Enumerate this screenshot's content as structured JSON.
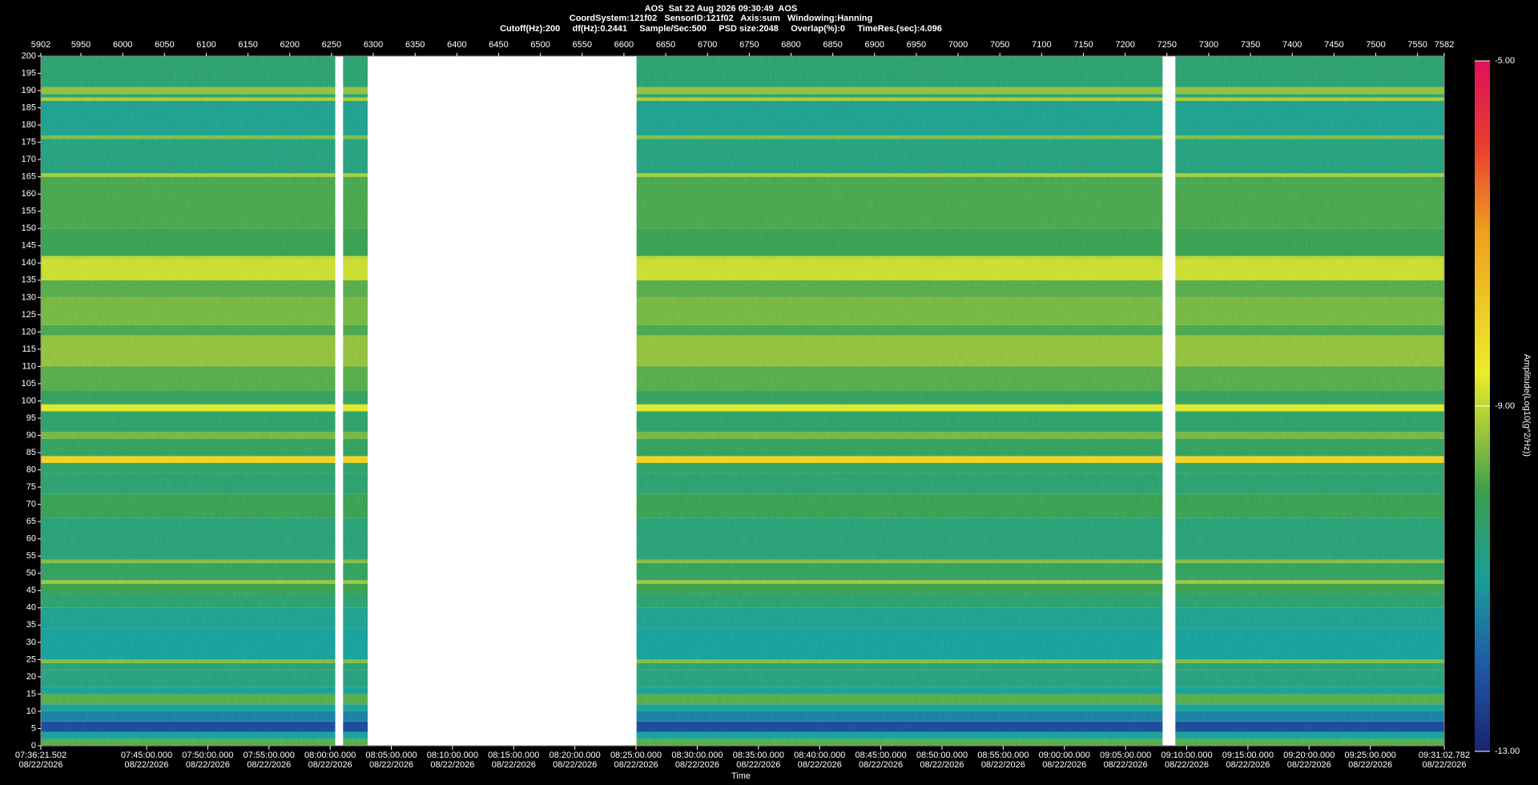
{
  "chart_data": {
    "type": "spectrogram",
    "title": "AOS  Sat 22 Aug 2026 09:30:49  AOS",
    "subtitle": [
      "CoordSystem:121f02   SensorID:121f02   Axis:sum   Windowing:Hanning",
      "Cutoff(Hz):200     df(Hz):0.2441     Sample/Sec:500     PSD size:2048     Overlap(%):0     TimeRes.(sec):4.096"
    ],
    "x_label": "Time",
    "colorbar_label": "Amplitude(Log10(g^2/Hz))",
    "xlim": [
      5902,
      7582
    ],
    "x2ticks": [
      5902,
      5950,
      6000,
      6050,
      6100,
      6150,
      6200,
      6250,
      6300,
      6350,
      6400,
      6450,
      6500,
      6550,
      6600,
      6650,
      6700,
      6750,
      6800,
      6850,
      6900,
      6950,
      7000,
      7050,
      7100,
      7150,
      7200,
      7250,
      7300,
      7350,
      7400,
      7450,
      7500,
      7550,
      7582
    ],
    "xticks": [
      {
        "value": 5902,
        "label": "07:36:21.502",
        "date": "08/22/2026"
      },
      {
        "value": 6028.59,
        "label": "07:45:00.000",
        "date": "08/22/2026"
      },
      {
        "value": 6101.83,
        "label": "07:50:00.000",
        "date": "08/22/2026"
      },
      {
        "value": 6175.07,
        "label": "07:55:00.000",
        "date": "08/22/2026"
      },
      {
        "value": 6248.32,
        "label": "08:00:00.000",
        "date": "08/22/2026"
      },
      {
        "value": 6321.56,
        "label": "08:05:00.000",
        "date": "08/22/2026"
      },
      {
        "value": 6394.8,
        "label": "08:10:00.000",
        "date": "08/22/2026"
      },
      {
        "value": 6468.04,
        "label": "08:15:00.000",
        "date": "08/22/2026"
      },
      {
        "value": 6541.28,
        "label": "08:20:00.000",
        "date": "08/22/2026"
      },
      {
        "value": 6614.52,
        "label": "08:25:00.000",
        "date": "08/22/2026"
      },
      {
        "value": 6687.77,
        "label": "08:30:00.000",
        "date": "08/22/2026"
      },
      {
        "value": 6761.01,
        "label": "08:35:00.000",
        "date": "08/22/2026"
      },
      {
        "value": 6834.25,
        "label": "08:40:00.000",
        "date": "08/22/2026"
      },
      {
        "value": 6907.49,
        "label": "08:45:00.000",
        "date": "08/22/2026"
      },
      {
        "value": 6980.73,
        "label": "08:50:00.000",
        "date": "08/22/2026"
      },
      {
        "value": 7053.98,
        "label": "08:55:00.000",
        "date": "08/22/2026"
      },
      {
        "value": 7127.22,
        "label": "09:00:00.000",
        "date": "08/22/2026"
      },
      {
        "value": 7200.46,
        "label": "09:05:00.000",
        "date": "08/22/2026"
      },
      {
        "value": 7273.7,
        "label": "09:10:00.000",
        "date": "08/22/2026"
      },
      {
        "value": 7346.94,
        "label": "09:15:00.000",
        "date": "08/22/2026"
      },
      {
        "value": 7420.19,
        "label": "09:20:00.000",
        "date": "08/22/2026"
      },
      {
        "value": 7493.43,
        "label": "09:25:00.000",
        "date": "08/22/2026"
      },
      {
        "value": 7582,
        "label": "09:31:02.782",
        "date": "08/22/2026"
      }
    ],
    "ylim": [
      0,
      200
    ],
    "yticks": [
      0,
      5,
      10,
      15,
      20,
      25,
      30,
      35,
      40,
      45,
      50,
      55,
      60,
      65,
      70,
      75,
      80,
      85,
      90,
      95,
      100,
      105,
      110,
      115,
      120,
      125,
      130,
      135,
      140,
      145,
      150,
      155,
      160,
      165,
      170,
      175,
      180,
      185,
      190,
      195,
      200
    ],
    "segments": [
      [
        5902,
        6254.4
      ],
      [
        6263.8,
        6293.2
      ],
      [
        6615.1,
        7244.8
      ],
      [
        7260.1,
        7582
      ]
    ],
    "frequency_edges": [
      0,
      2,
      4,
      7,
      10,
      12,
      15,
      17,
      22,
      24,
      25,
      34,
      40,
      44,
      47,
      48,
      53,
      54,
      66,
      73,
      79,
      82,
      84,
      89,
      91,
      97,
      99,
      103,
      110,
      119,
      122,
      130,
      135,
      141,
      142,
      150,
      165,
      166,
      176,
      177,
      187,
      188,
      189,
      191,
      200
    ],
    "levels": [
      -9.8,
      -11,
      -12.3,
      -11.5,
      -11,
      -9.8,
      -11,
      -10.6,
      -10.4,
      -9.5,
      -11,
      -10.8,
      -10.4,
      -10,
      -9.3,
      -10.2,
      -9.5,
      -10.5,
      -10,
      -10.4,
      -10.3,
      -8,
      -10.2,
      -9.6,
      -10.3,
      -8.7,
      -10.2,
      -9.8,
      -9.4,
      -9.9,
      -9.6,
      -9.8,
      -8.9,
      -9,
      -10,
      -9.9,
      -9.2,
      -10.6,
      -9.5,
      -10.8,
      -9.2,
      -10.5,
      -9.4,
      -10.4
    ],
    "clim": [
      -13,
      -5
    ],
    "cticks": [
      {
        "value": -5,
        "label": "-5.00"
      },
      {
        "value": -9,
        "label": "-9.00"
      },
      {
        "value": -13,
        "label": "-13.00"
      }
    ],
    "colormap": [
      {
        "value": -13,
        "color": "#1c2470"
      },
      {
        "value": -12,
        "color": "#1f5aa8"
      },
      {
        "value": -11,
        "color": "#1a9e98"
      },
      {
        "value": -10,
        "color": "#3a9e50"
      },
      {
        "value": -9.3,
        "color": "#9cc63a"
      },
      {
        "value": -8.6,
        "color": "#ecec2a"
      },
      {
        "value": -7,
        "color": "#f0a020"
      },
      {
        "value": -6,
        "color": "#e8402e"
      },
      {
        "value": -5,
        "color": "#e0105a"
      }
    ]
  }
}
